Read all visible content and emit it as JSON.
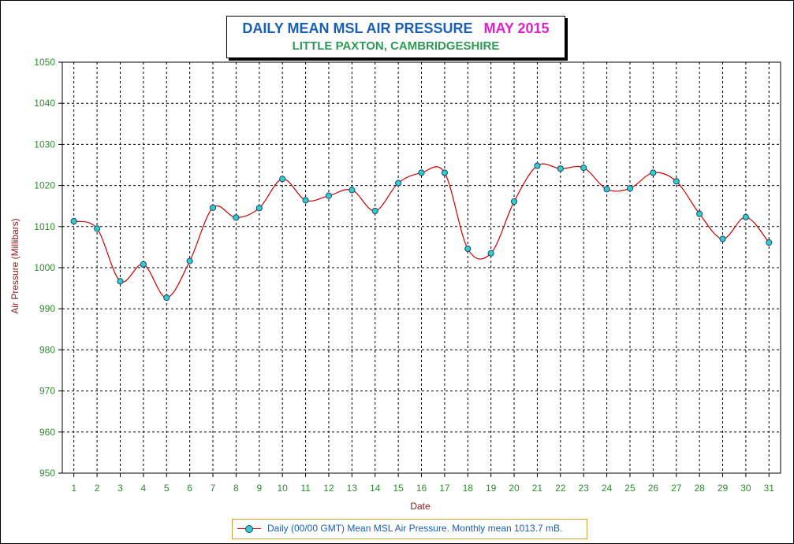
{
  "title": {
    "main": "DAILY MEAN MSL AIR PRESSURE",
    "month": "MAY 2015",
    "subtitle": "LITTLE PAXTON, CAMBRIDGESHIRE"
  },
  "colors": {
    "title_main": "#1a5fb4",
    "title_month": "#e020d0",
    "subtitle": "#2e9a55",
    "tick_labels": "#2e8b2e",
    "axis_titles": "#8b1a1a",
    "line": "#cc0000",
    "marker_fill": "#33cccc",
    "grid": "#000000"
  },
  "chart_data": {
    "type": "line",
    "xlabel": "Date",
    "ylabel": "Air Pressure (Millibars)",
    "ylim": [
      950,
      1050
    ],
    "yticks": [
      950,
      960,
      970,
      980,
      990,
      1000,
      1010,
      1020,
      1030,
      1040,
      1050
    ],
    "grid": true,
    "legend_position": "bottom",
    "categories": [
      "1",
      "2",
      "3",
      "4",
      "5",
      "6",
      "7",
      "8",
      "9",
      "10",
      "11",
      "12",
      "13",
      "14",
      "15",
      "16",
      "17",
      "18",
      "19",
      "20",
      "21",
      "22",
      "23",
      "24",
      "25",
      "26",
      "27",
      "28",
      "29",
      "30",
      "31"
    ],
    "series": [
      {
        "name": "Daily (00/00 GMT) Mean MSL Air Pressure. Monthly mean 1013.7 mB.",
        "values": [
          1011.3,
          1009.5,
          996.7,
          1000.8,
          992.7,
          1001.6,
          1014.6,
          1012.2,
          1014.5,
          1021.6,
          1016.4,
          1017.5,
          1018.9,
          1013.8,
          1020.6,
          1023.1,
          1023.1,
          1004.6,
          1003.5,
          1016.1,
          1024.8,
          1024.1,
          1024.3,
          1019.1,
          1019.3,
          1023.1,
          1021.0,
          1013.1,
          1007.0,
          1012.3,
          1006.1
        ]
      }
    ]
  }
}
